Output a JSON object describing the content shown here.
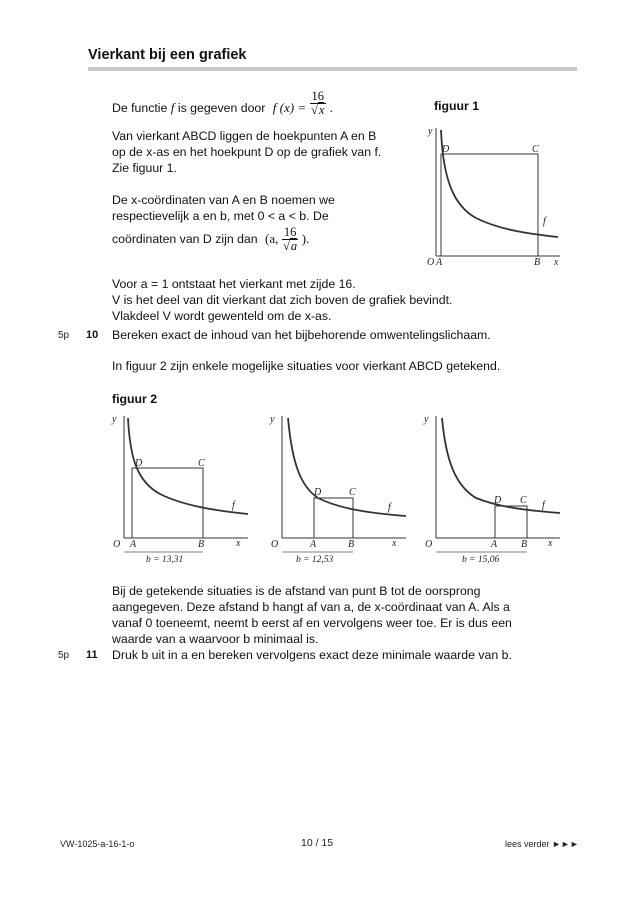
{
  "header": {
    "title": "Vierkant bij een grafiek"
  },
  "intro": {
    "line1_pre": "De functie",
    "f": "f",
    "line1_mid": "is gegeven door",
    "formula_lhs": "f (x) =",
    "formula_num": "16",
    "formula_den": "x",
    "line1_end": ".",
    "line2": "Van vierkant ABCD liggen de hoekpunten A en B",
    "line3": "op de x-as en het hoekpunt D op de grafiek van f.",
    "line4": "Zie figuur 1.",
    "line5": "De x-coördinaten van A en B noemen we",
    "line6": "respectievelijk a en b, met 0 < a < b. De",
    "line7_pre": "coördinaten van D zijn dan",
    "d_open": "(a,",
    "d_num": "16",
    "d_den": "a",
    "d_close": ")."
  },
  "figuur1": {
    "label": "figuur 1"
  },
  "q10": {
    "line1": "Voor a = 1 ontstaat het vierkant met zijde 16.",
    "line2": "V is het deel van dit vierkant dat zich boven de grafiek bevindt.",
    "line3": "Vlakdeel V wordt gewenteld om de x-as.",
    "marks": "5p",
    "number": "10",
    "question": "Bereken exact de inhoud van het bijbehorende omwentelingslichaam."
  },
  "figuur2_intro": "In figuur 2 zijn enkele mogelijke situaties voor vierkant ABCD getekend.",
  "figuur2": {
    "label": "figuur 2",
    "captions": [
      "b = 13,31",
      "b = 12,53",
      "b = 15,06"
    ]
  },
  "graph_labels": {
    "y": "y",
    "x": "x",
    "O": "O",
    "A": "A",
    "B": "B",
    "C": "C",
    "D": "D",
    "f": "f"
  },
  "q11": {
    "line1": "Bij de getekende situaties is de afstand van punt B tot de oorsprong",
    "line2": "aangegeven. Deze afstand b hangt af van a, de x-coördinaat van A. Als a",
    "line3": "vanaf 0 toeneemt, neemt b eerst af en vervolgens weer toe. Er is dus een",
    "line4": "waarde van a waarvoor b minimaal is.",
    "marks": "5p",
    "number": "11",
    "question": "Druk b uit in a en bereken vervolgens exact deze minimale waarde van b."
  },
  "footer": {
    "code": "VW-1025-a-16-1-o",
    "page": "10 / 15",
    "next": "lees verder ►►►"
  }
}
